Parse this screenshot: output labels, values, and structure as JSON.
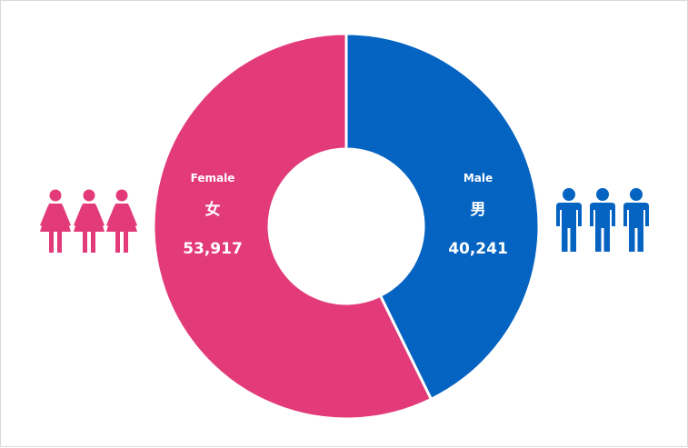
{
  "chart_data": {
    "type": "pie",
    "variant": "donut",
    "slices": [
      {
        "name": "Male",
        "native_name": "男",
        "value": 40241,
        "value_label": "40,241",
        "color": "#0563c1"
      },
      {
        "name": "Female",
        "native_name": "女",
        "value": 53917,
        "value_label": "53,917",
        "color": "#e33b79"
      }
    ],
    "start_angle_deg": 0,
    "direction": "clockwise",
    "legend": "none",
    "decorations": [
      {
        "icon": "female-figure-icon",
        "count": 3,
        "side": "left",
        "color": "#e33b79"
      },
      {
        "icon": "male-figure-icon",
        "count": 3,
        "side": "right",
        "color": "#0563c1"
      }
    ]
  }
}
